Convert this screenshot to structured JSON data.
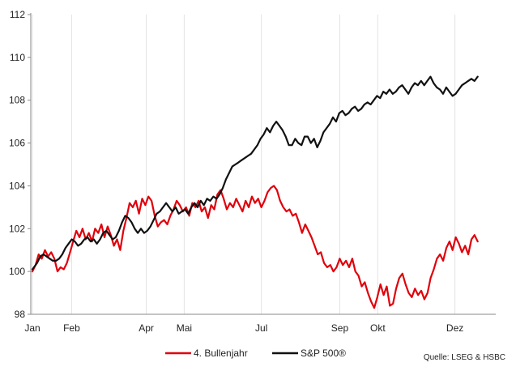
{
  "chart_data": {
    "type": "line",
    "title": "",
    "xlabel": "",
    "ylabel": "",
    "ylim": [
      98,
      112
    ],
    "yticks": [
      98,
      100,
      102,
      104,
      106,
      108,
      110,
      112
    ],
    "xlim": [
      0,
      365
    ],
    "x_ticks": [
      {
        "label": "Jan",
        "day": 0
      },
      {
        "label": "Feb",
        "day": 31
      },
      {
        "label": "Apr",
        "day": 90
      },
      {
        "label": "Mai",
        "day": 120
      },
      {
        "label": "Jul",
        "day": 181
      },
      {
        "label": "Sep",
        "day": 243
      },
      {
        "label": "Okt",
        "day": 273
      },
      {
        "label": "Dez",
        "day": 334
      }
    ],
    "grid": "vertical",
    "legend_position": "bottom",
    "source_text": "Quelle: LSEG & HSBC",
    "series": [
      {
        "name": "4. Bullenjahr",
        "color": "#e0000a",
        "points": [
          [
            0,
            100.0
          ],
          [
            2,
            100.3
          ],
          [
            4,
            100.8
          ],
          [
            6,
            100.6
          ],
          [
            8,
            101.0
          ],
          [
            10,
            100.7
          ],
          [
            12,
            100.9
          ],
          [
            14,
            100.6
          ],
          [
            16,
            100.0
          ],
          [
            18,
            100.2
          ],
          [
            20,
            100.1
          ],
          [
            22,
            100.4
          ],
          [
            24,
            100.9
          ],
          [
            26,
            101.4
          ],
          [
            28,
            101.9
          ],
          [
            30,
            101.6
          ],
          [
            32,
            102.0
          ],
          [
            34,
            101.5
          ],
          [
            36,
            101.8
          ],
          [
            38,
            101.4
          ],
          [
            40,
            102.0
          ],
          [
            42,
            101.8
          ],
          [
            44,
            102.2
          ],
          [
            46,
            101.6
          ],
          [
            48,
            102.1
          ],
          [
            50,
            101.7
          ],
          [
            52,
            101.2
          ],
          [
            54,
            101.5
          ],
          [
            56,
            101.0
          ],
          [
            58,
            101.9
          ],
          [
            60,
            102.5
          ],
          [
            62,
            103.2
          ],
          [
            64,
            103.0
          ],
          [
            66,
            103.3
          ],
          [
            68,
            102.7
          ],
          [
            70,
            103.4
          ],
          [
            72,
            103.1
          ],
          [
            74,
            103.5
          ],
          [
            76,
            103.3
          ],
          [
            78,
            102.6
          ],
          [
            80,
            102.1
          ],
          [
            82,
            102.3
          ],
          [
            84,
            102.4
          ],
          [
            86,
            102.2
          ],
          [
            88,
            102.6
          ],
          [
            90,
            102.9
          ],
          [
            92,
            103.3
          ],
          [
            94,
            103.1
          ],
          [
            96,
            102.8
          ],
          [
            98,
            103.0
          ],
          [
            100,
            102.6
          ],
          [
            102,
            103.2
          ],
          [
            104,
            103.0
          ],
          [
            106,
            103.3
          ],
          [
            108,
            102.8
          ],
          [
            110,
            103.0
          ],
          [
            112,
            102.5
          ],
          [
            114,
            103.1
          ],
          [
            116,
            102.9
          ],
          [
            118,
            103.6
          ],
          [
            120,
            103.8
          ],
          [
            122,
            103.4
          ],
          [
            124,
            102.9
          ],
          [
            126,
            103.2
          ],
          [
            128,
            103.0
          ],
          [
            130,
            103.4
          ],
          [
            132,
            103.1
          ],
          [
            134,
            102.8
          ],
          [
            136,
            103.3
          ],
          [
            138,
            103.0
          ],
          [
            140,
            103.5
          ],
          [
            142,
            103.2
          ],
          [
            144,
            103.4
          ],
          [
            146,
            103.0
          ],
          [
            148,
            103.3
          ],
          [
            150,
            103.7
          ],
          [
            152,
            103.9
          ],
          [
            154,
            104.0
          ],
          [
            156,
            103.8
          ],
          [
            158,
            103.3
          ],
          [
            160,
            103.0
          ],
          [
            162,
            102.8
          ],
          [
            164,
            102.9
          ],
          [
            166,
            102.6
          ],
          [
            168,
            102.7
          ],
          [
            170,
            102.3
          ],
          [
            172,
            101.8
          ],
          [
            174,
            102.2
          ],
          [
            176,
            101.9
          ],
          [
            178,
            101.6
          ],
          [
            180,
            101.2
          ],
          [
            182,
            100.8
          ],
          [
            184,
            100.9
          ],
          [
            186,
            100.4
          ],
          [
            188,
            100.2
          ],
          [
            190,
            100.3
          ],
          [
            192,
            100.0
          ],
          [
            194,
            100.2
          ],
          [
            196,
            100.6
          ],
          [
            198,
            100.3
          ],
          [
            200,
            100.5
          ],
          [
            202,
            100.2
          ],
          [
            204,
            100.6
          ],
          [
            206,
            100.0
          ],
          [
            208,
            99.8
          ],
          [
            210,
            99.3
          ],
          [
            212,
            99.5
          ],
          [
            214,
            99.0
          ],
          [
            216,
            98.6
          ],
          [
            218,
            98.3
          ],
          [
            220,
            98.8
          ],
          [
            222,
            99.4
          ],
          [
            224,
            98.9
          ],
          [
            226,
            99.3
          ],
          [
            228,
            98.4
          ],
          [
            230,
            98.5
          ],
          [
            232,
            99.2
          ],
          [
            234,
            99.7
          ],
          [
            236,
            99.9
          ],
          [
            238,
            99.4
          ],
          [
            240,
            99.0
          ],
          [
            242,
            98.8
          ],
          [
            244,
            99.2
          ],
          [
            246,
            98.9
          ],
          [
            248,
            99.1
          ],
          [
            250,
            98.7
          ],
          [
            252,
            99.0
          ],
          [
            254,
            99.7
          ],
          [
            256,
            100.1
          ],
          [
            258,
            100.6
          ],
          [
            260,
            100.8
          ],
          [
            262,
            100.5
          ],
          [
            264,
            101.1
          ],
          [
            266,
            101.4
          ],
          [
            268,
            101.0
          ],
          [
            270,
            101.6
          ],
          [
            272,
            101.3
          ],
          [
            274,
            100.9
          ],
          [
            276,
            101.2
          ],
          [
            278,
            100.8
          ],
          [
            280,
            101.5
          ],
          [
            282,
            101.7
          ],
          [
            284,
            101.4
          ]
        ]
      },
      {
        "name": "S&P 500®",
        "color": "#111111",
        "points": [
          [
            0,
            100.1
          ],
          [
            3,
            100.4
          ],
          [
            5,
            100.7
          ],
          [
            7,
            100.8
          ],
          [
            9,
            100.7
          ],
          [
            11,
            100.6
          ],
          [
            13,
            100.5
          ],
          [
            15,
            100.5
          ],
          [
            17,
            100.6
          ],
          [
            19,
            100.8
          ],
          [
            21,
            101.1
          ],
          [
            23,
            101.3
          ],
          [
            25,
            101.5
          ],
          [
            27,
            101.4
          ],
          [
            29,
            101.2
          ],
          [
            31,
            101.3
          ],
          [
            33,
            101.5
          ],
          [
            35,
            101.6
          ],
          [
            37,
            101.4
          ],
          [
            39,
            101.5
          ],
          [
            41,
            101.3
          ],
          [
            43,
            101.5
          ],
          [
            45,
            101.8
          ],
          [
            47,
            101.9
          ],
          [
            49,
            101.7
          ],
          [
            51,
            101.5
          ],
          [
            53,
            101.6
          ],
          [
            55,
            101.9
          ],
          [
            57,
            102.3
          ],
          [
            59,
            102.6
          ],
          [
            61,
            102.5
          ],
          [
            63,
            102.3
          ],
          [
            65,
            102.0
          ],
          [
            67,
            101.8
          ],
          [
            69,
            102.0
          ],
          [
            71,
            101.8
          ],
          [
            73,
            101.9
          ],
          [
            75,
            102.1
          ],
          [
            77,
            102.4
          ],
          [
            79,
            102.7
          ],
          [
            81,
            102.8
          ],
          [
            83,
            103.0
          ],
          [
            85,
            103.2
          ],
          [
            87,
            103.0
          ],
          [
            89,
            102.8
          ],
          [
            91,
            103.0
          ],
          [
            93,
            102.7
          ],
          [
            95,
            102.8
          ],
          [
            97,
            102.9
          ],
          [
            99,
            102.7
          ],
          [
            101,
            103.0
          ],
          [
            103,
            103.2
          ],
          [
            105,
            103.0
          ],
          [
            107,
            103.3
          ],
          [
            109,
            103.1
          ],
          [
            111,
            103.4
          ],
          [
            113,
            103.3
          ],
          [
            115,
            103.5
          ],
          [
            117,
            103.4
          ],
          [
            119,
            103.6
          ],
          [
            121,
            103.9
          ],
          [
            123,
            104.3
          ],
          [
            125,
            104.6
          ],
          [
            127,
            104.9
          ],
          [
            129,
            105.0
          ],
          [
            131,
            105.1
          ],
          [
            133,
            105.2
          ],
          [
            135,
            105.3
          ],
          [
            137,
            105.4
          ],
          [
            139,
            105.5
          ],
          [
            141,
            105.7
          ],
          [
            143,
            105.9
          ],
          [
            145,
            106.2
          ],
          [
            147,
            106.4
          ],
          [
            149,
            106.7
          ],
          [
            151,
            106.5
          ],
          [
            153,
            106.8
          ],
          [
            155,
            107.0
          ],
          [
            157,
            106.8
          ],
          [
            159,
            106.6
          ],
          [
            161,
            106.3
          ],
          [
            163,
            105.9
          ],
          [
            165,
            105.9
          ],
          [
            167,
            106.2
          ],
          [
            169,
            106.0
          ],
          [
            171,
            105.9
          ],
          [
            173,
            106.3
          ],
          [
            175,
            106.3
          ],
          [
            177,
            106.0
          ],
          [
            179,
            106.2
          ],
          [
            181,
            105.8
          ],
          [
            183,
            106.1
          ],
          [
            185,
            106.5
          ],
          [
            187,
            106.7
          ],
          [
            189,
            106.9
          ],
          [
            191,
            107.2
          ],
          [
            193,
            107.0
          ],
          [
            195,
            107.4
          ],
          [
            197,
            107.5
          ],
          [
            199,
            107.3
          ],
          [
            201,
            107.4
          ],
          [
            203,
            107.6
          ],
          [
            205,
            107.7
          ],
          [
            207,
            107.5
          ],
          [
            209,
            107.6
          ],
          [
            211,
            107.8
          ],
          [
            213,
            107.9
          ],
          [
            215,
            107.8
          ],
          [
            217,
            108.0
          ],
          [
            219,
            108.2
          ],
          [
            221,
            108.1
          ],
          [
            223,
            108.4
          ],
          [
            225,
            108.3
          ],
          [
            227,
            108.5
          ],
          [
            229,
            108.3
          ],
          [
            231,
            108.4
          ],
          [
            233,
            108.6
          ],
          [
            235,
            108.7
          ],
          [
            237,
            108.5
          ],
          [
            239,
            108.3
          ],
          [
            241,
            108.6
          ],
          [
            243,
            108.8
          ],
          [
            245,
            108.7
          ],
          [
            247,
            108.9
          ],
          [
            249,
            108.7
          ],
          [
            251,
            108.9
          ],
          [
            253,
            109.1
          ],
          [
            255,
            108.8
          ],
          [
            257,
            108.6
          ],
          [
            259,
            108.5
          ],
          [
            261,
            108.3
          ],
          [
            263,
            108.6
          ],
          [
            265,
            108.4
          ],
          [
            267,
            108.2
          ],
          [
            269,
            108.3
          ],
          [
            271,
            108.5
          ],
          [
            273,
            108.7
          ],
          [
            275,
            108.8
          ],
          [
            277,
            108.9
          ],
          [
            279,
            109.0
          ],
          [
            281,
            108.9
          ],
          [
            283,
            109.1
          ]
        ]
      }
    ]
  }
}
